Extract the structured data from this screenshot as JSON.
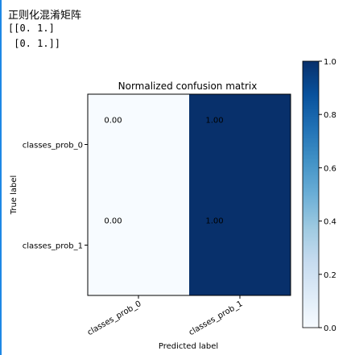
{
  "output": {
    "heading": "正则化混淆矩阵",
    "matrix_lines": [
      "[[0. 1.]",
      " [0. 1.]]"
    ]
  },
  "chart_data": {
    "type": "heatmap",
    "title": "Normalized confusion matrix",
    "xlabel": "Predicted label",
    "ylabel": "True label",
    "x_categories": [
      "classes_prob_0",
      "classes_prob_1"
    ],
    "y_categories": [
      "classes_prob_0",
      "classes_prob_1"
    ],
    "values": [
      [
        0.0,
        1.0
      ],
      [
        0.0,
        1.0
      ]
    ],
    "cell_labels": [
      [
        "0.00",
        "1.00"
      ],
      [
        "0.00",
        "1.00"
      ]
    ],
    "colormap": "Blues",
    "color_low": "#f7fbff",
    "color_high": "#08306b",
    "colorbar": {
      "range": [
        0.0,
        1.0
      ],
      "ticks": [
        "0.0",
        "0.2",
        "0.4",
        "0.6",
        "0.8",
        "1.0"
      ]
    }
  }
}
